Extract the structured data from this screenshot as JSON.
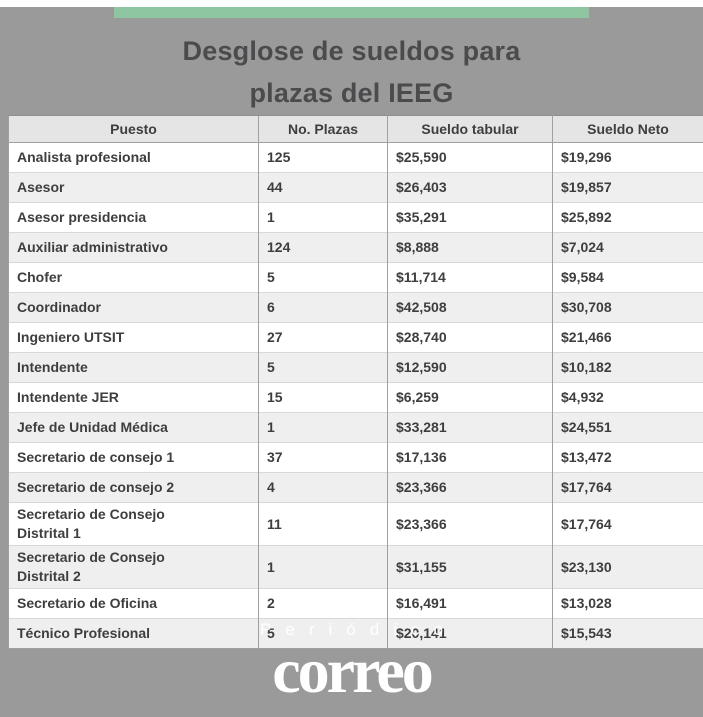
{
  "page": {
    "background_color": "#ffffff",
    "panel_color": "#9a9a9a",
    "accent_bar_color": "#8dc6a1"
  },
  "title": {
    "line1": "Desglose de sueldos para",
    "line2": "plazas del IEEG"
  },
  "table": {
    "headers": [
      "Puesto",
      "No. Plazas",
      "Sueldo tabular",
      "Sueldo Neto"
    ],
    "rows": [
      [
        "Analista profesional",
        "125",
        "$25,590",
        "$19,296"
      ],
      [
        "Asesor",
        "44",
        "$26,403",
        "$19,857"
      ],
      [
        "Asesor presidencia",
        "1",
        "$35,291",
        "$25,892"
      ],
      [
        "Auxiliar administrativo",
        "124",
        "$8,888",
        "$7,024"
      ],
      [
        "Chofer",
        "5",
        "$11,714",
        "$9,584"
      ],
      [
        "Coordinador",
        "6",
        "$42,508",
        "$30,708"
      ],
      [
        "Ingeniero UTSIT",
        "27",
        "$28,740",
        "$21,466"
      ],
      [
        "Intendente",
        "5",
        "$12,590",
        "$10,182"
      ],
      [
        "Intendente JER",
        "15",
        "$6,259",
        "$4,932"
      ],
      [
        "Jefe de Unidad Médica",
        "1",
        "$33,281",
        "$24,551"
      ],
      [
        "Secretario de consejo 1",
        "37",
        "$17,136",
        "$13,472"
      ],
      [
        "Secretario de consejo 2",
        "4",
        "$23,366",
        "$17,764"
      ],
      [
        "Secretario de Consejo\nDistrital 1",
        "11",
        "$23,366",
        "$17,764"
      ],
      [
        "Secretario de Consejo\nDistrital 2",
        "1",
        "$31,155",
        "$23,130"
      ],
      [
        "Secretario de Oficina",
        "2",
        "$16,491",
        "$13,028"
      ],
      [
        "Técnico Profesional",
        "5",
        "$20,141",
        "$15,543"
      ]
    ]
  },
  "footer": {
    "kicker": "Periódico",
    "logo": "correo"
  },
  "chart_data": {
    "type": "table",
    "title": "Desglose de sueldos para plazas del IEEG",
    "columns": [
      "Puesto",
      "No. Plazas",
      "Sueldo tabular",
      "Sueldo Neto"
    ],
    "rows": [
      [
        "Analista profesional",
        125,
        25590,
        19296
      ],
      [
        "Asesor",
        44,
        26403,
        19857
      ],
      [
        "Asesor presidencia",
        1,
        35291,
        25892
      ],
      [
        "Auxiliar administrativo",
        124,
        8888,
        7024
      ],
      [
        "Chofer",
        5,
        11714,
        9584
      ],
      [
        "Coordinador",
        6,
        42508,
        30708
      ],
      [
        "Ingeniero UTSIT",
        27,
        28740,
        21466
      ],
      [
        "Intendente",
        5,
        12590,
        10182
      ],
      [
        "Intendente JER",
        15,
        6259,
        4932
      ],
      [
        "Jefe de Unidad Médica",
        1,
        33281,
        24551
      ],
      [
        "Secretario de consejo 1",
        37,
        17136,
        13472
      ],
      [
        "Secretario de consejo 2",
        4,
        23366,
        17764
      ],
      [
        "Secretario de Consejo Distrital 1",
        11,
        23366,
        17764
      ],
      [
        "Secretario de Consejo Distrital 2",
        1,
        31155,
        23130
      ],
      [
        "Secretario de Oficina",
        2,
        16491,
        13028
      ],
      [
        "Técnico Profesional",
        5,
        20141,
        15543
      ]
    ],
    "currency": "MXN",
    "source_brand": "Periódico Correo"
  }
}
